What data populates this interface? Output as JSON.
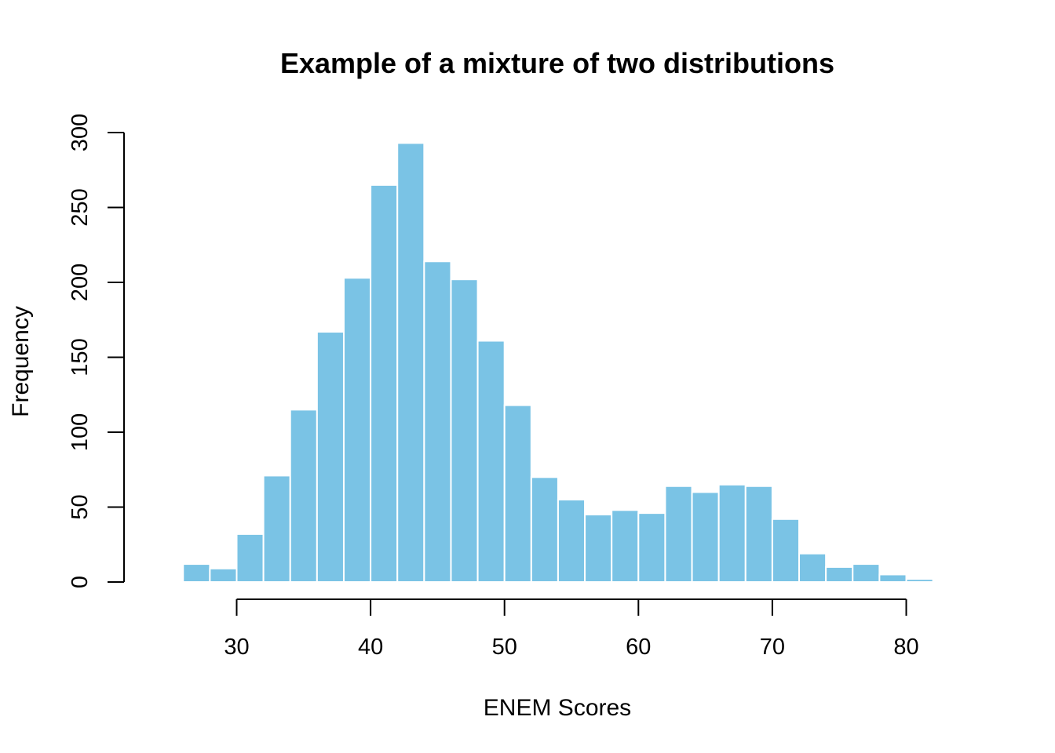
{
  "chart_data": {
    "type": "bar",
    "title": "Example of a mixture of two distributions",
    "xlabel": "ENEM Scores",
    "ylabel": "Frequency",
    "bar_color": "#7AC3E5",
    "bin_width": 2,
    "bins": [
      {
        "x0": 24,
        "x1": 26,
        "count": 1
      },
      {
        "x0": 26,
        "x1": 28,
        "count": 12
      },
      {
        "x0": 28,
        "x1": 30,
        "count": 9
      },
      {
        "x0": 30,
        "x1": 32,
        "count": 32
      },
      {
        "x0": 32,
        "x1": 34,
        "count": 71
      },
      {
        "x0": 34,
        "x1": 36,
        "count": 115
      },
      {
        "x0": 36,
        "x1": 38,
        "count": 167
      },
      {
        "x0": 38,
        "x1": 40,
        "count": 203
      },
      {
        "x0": 40,
        "x1": 42,
        "count": 265
      },
      {
        "x0": 42,
        "x1": 44,
        "count": 293
      },
      {
        "x0": 44,
        "x1": 46,
        "count": 214
      },
      {
        "x0": 46,
        "x1": 48,
        "count": 202
      },
      {
        "x0": 48,
        "x1": 50,
        "count": 161
      },
      {
        "x0": 50,
        "x1": 52,
        "count": 118
      },
      {
        "x0": 52,
        "x1": 54,
        "count": 70
      },
      {
        "x0": 54,
        "x1": 56,
        "count": 55
      },
      {
        "x0": 56,
        "x1": 58,
        "count": 45
      },
      {
        "x0": 58,
        "x1": 60,
        "count": 48
      },
      {
        "x0": 60,
        "x1": 62,
        "count": 46
      },
      {
        "x0": 62,
        "x1": 64,
        "count": 64
      },
      {
        "x0": 64,
        "x1": 66,
        "count": 60
      },
      {
        "x0": 66,
        "x1": 68,
        "count": 65
      },
      {
        "x0": 68,
        "x1": 70,
        "count": 64
      },
      {
        "x0": 70,
        "x1": 72,
        "count": 42
      },
      {
        "x0": 72,
        "x1": 74,
        "count": 19
      },
      {
        "x0": 74,
        "x1": 76,
        "count": 10
      },
      {
        "x0": 76,
        "x1": 78,
        "count": 12
      },
      {
        "x0": 78,
        "x1": 80,
        "count": 5
      },
      {
        "x0": 80,
        "x1": 82,
        "count": 2
      }
    ],
    "x_ticks": [
      30,
      40,
      50,
      60,
      70,
      80
    ],
    "y_ticks": [
      0,
      50,
      100,
      150,
      200,
      250,
      300
    ],
    "xlim": [
      24,
      82
    ],
    "ylim": [
      0,
      300
    ],
    "grid": false,
    "legend": "none"
  }
}
